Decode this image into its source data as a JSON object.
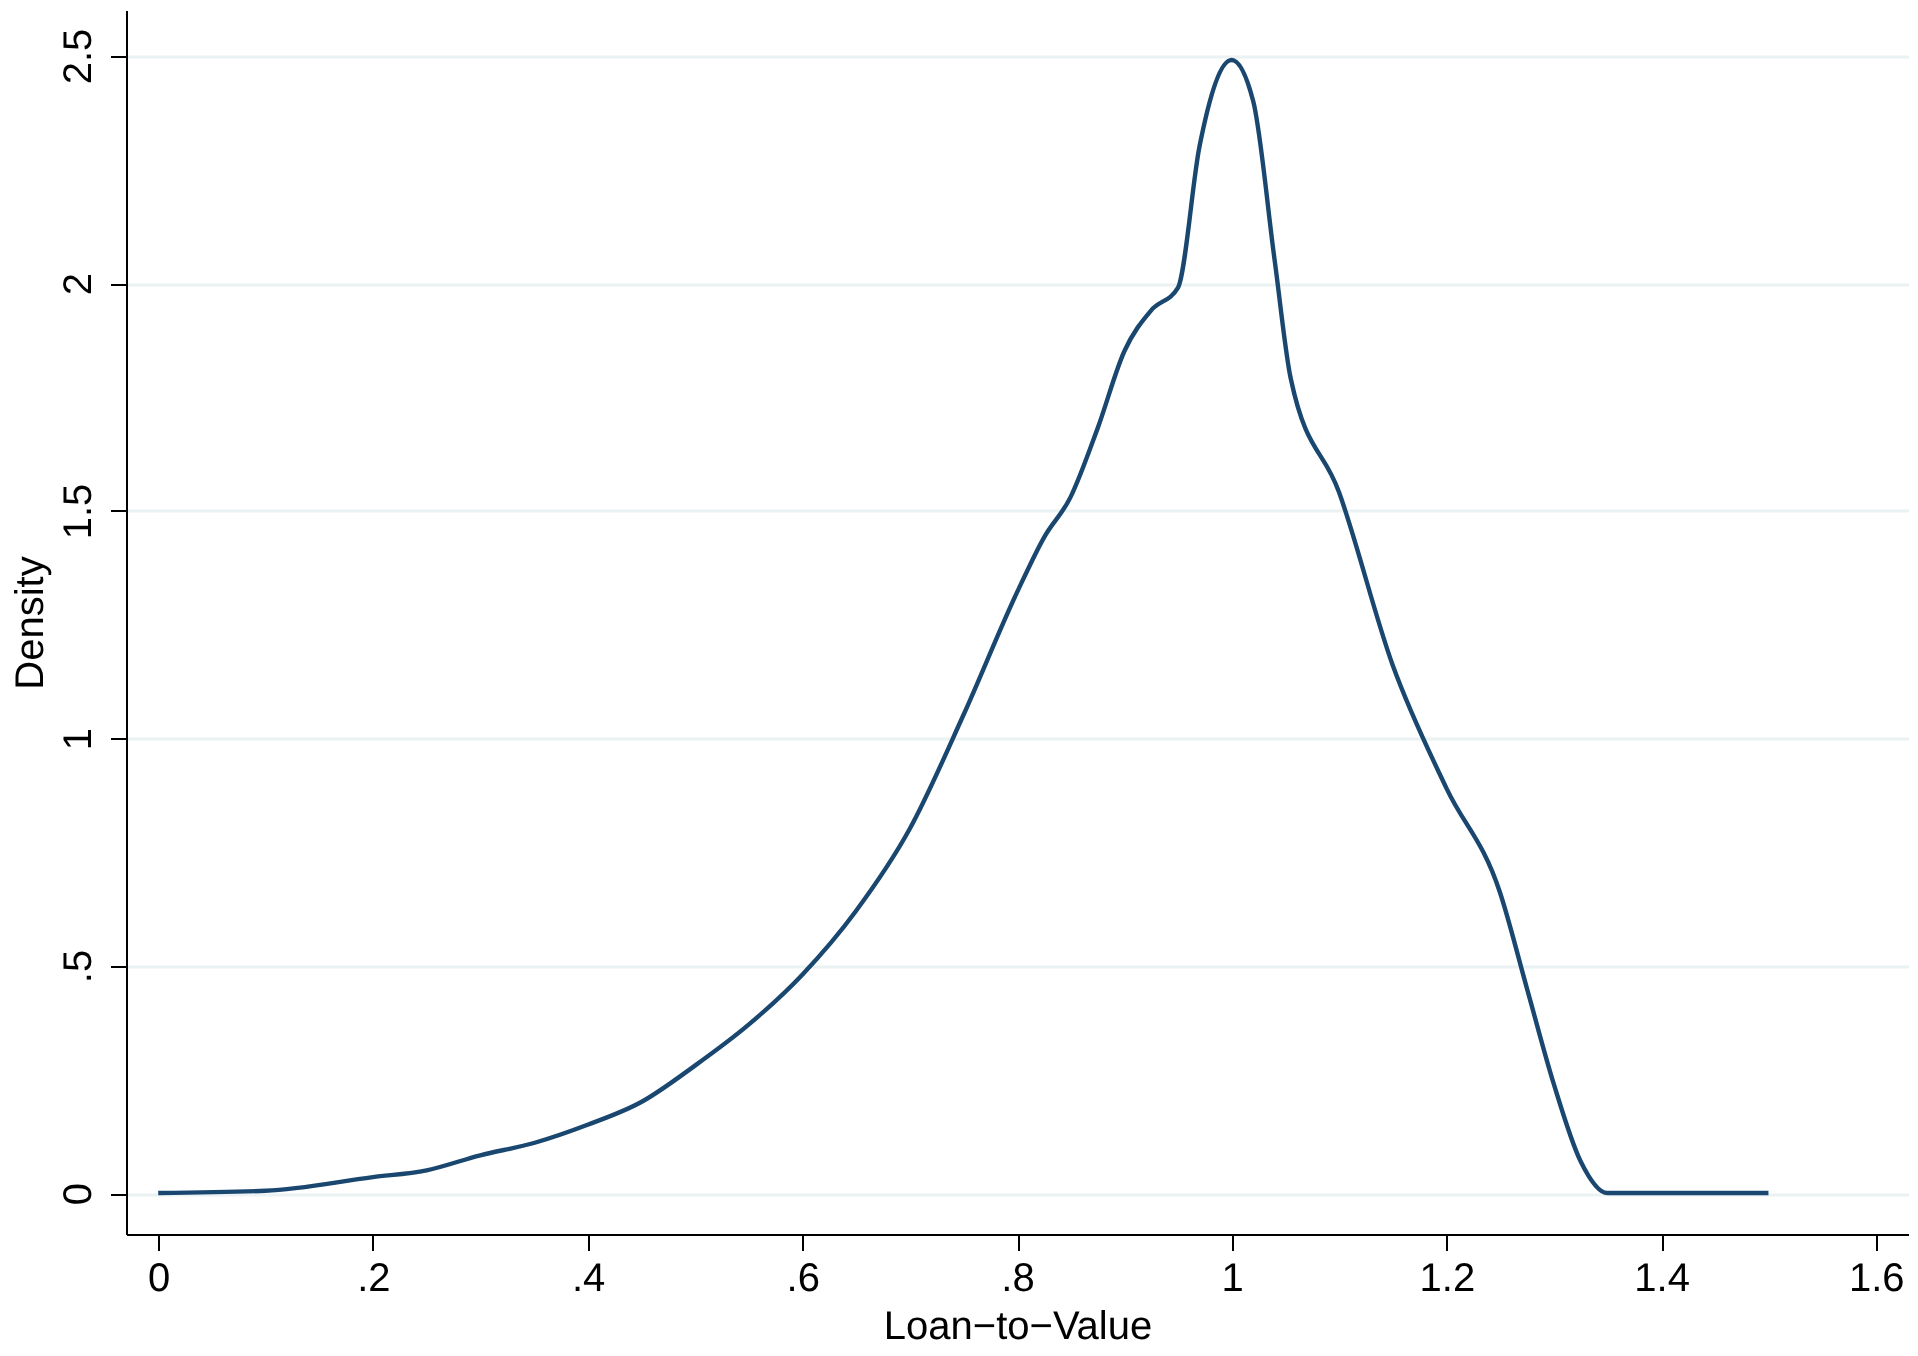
{
  "chart_data": {
    "type": "line",
    "xlabel": "Loan−to−Value",
    "ylabel": "Density",
    "x": [
      0,
      0.1,
      0.2,
      0.25,
      0.3,
      0.35,
      0.4,
      0.45,
      0.5,
      0.55,
      0.6,
      0.65,
      0.7,
      0.75,
      0.8,
      0.825,
      0.85,
      0.875,
      0.9,
      0.925,
      0.95,
      0.97,
      1.0,
      1.02,
      1.04,
      1.055,
      1.1,
      1.15,
      1.2,
      1.25,
      1.275,
      1.3,
      1.325,
      1.35,
      1.5
    ],
    "series": [
      {
        "color": "#1a476f",
        "values": [
          0,
          0.005,
          0.035,
          0.05,
          0.083,
          0.11,
          0.15,
          0.2,
          0.28,
          0.37,
          0.48,
          0.62,
          0.8,
          1.05,
          1.32,
          1.44,
          1.53,
          1.68,
          1.85,
          1.94,
          1.99,
          2.3,
          2.49,
          2.4,
          2.05,
          1.79,
          1.54,
          1.16,
          0.89,
          0.66,
          0.45,
          0.24,
          0.07,
          0,
          0
        ]
      }
    ],
    "xlim": [
      -0.03,
      1.63
    ],
    "ylim": [
      -0.09,
      2.6
    ],
    "xticks": [
      0,
      {
        "value": 0.2,
        "label": ".2"
      },
      {
        "value": 0.4,
        "label": ".4"
      },
      {
        "value": 0.6,
        "label": ".6"
      },
      {
        "value": 0.8,
        "label": ".8"
      },
      1,
      1.2,
      1.4,
      1.6
    ],
    "yticks": [
      0,
      {
        "value": 0.5,
        "label": ".5"
      },
      1,
      1.5,
      2,
      2.5
    ],
    "grid": "y",
    "marker": "none",
    "line_style": "solid"
  }
}
